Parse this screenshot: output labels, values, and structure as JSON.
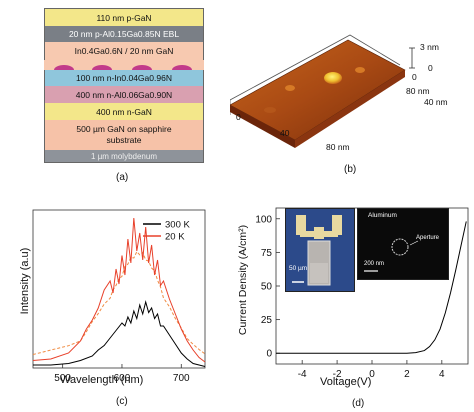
{
  "panel_a": {
    "label": "(a)",
    "layers": [
      {
        "text": "110 nm p-GaN",
        "color": "#f3e78a"
      },
      {
        "text": "20 nm p-Al0.15Ga0.85N EBL",
        "color": "#7a7f86"
      },
      {
        "text": "In0.4Ga0.6N / 20 nm GaN",
        "color": "#f7c9b0"
      },
      {
        "text": "100 nm n-In0.04Ga0.96N",
        "color": "#8fc6dc"
      },
      {
        "text": "400 nm n-Al0.06Ga0.90N",
        "color": "#d9a0b0"
      },
      {
        "text": "400 nm n-GaN",
        "color": "#f3e78a"
      },
      {
        "text": "500 µm GaN on sapphire substrate",
        "color": "#f6c2a8"
      },
      {
        "text": "1 µm molybdenum",
        "color": "#8e939a"
      }
    ]
  },
  "panel_b": {
    "label": "(b)",
    "z_top": "3 nm",
    "z_zero": "0",
    "y_ticks": [
      "0",
      "40 nm",
      "80 nm"
    ],
    "x_ticks": [
      "0",
      "40",
      "80 nm"
    ]
  },
  "panel_c": {
    "label": "(c)",
    "chart_data": {
      "type": "line",
      "xlabel": "Wavelength (nm)",
      "ylabel": "Intensity (a.u)",
      "xlim": [
        450,
        740
      ],
      "x_ticks": [
        "500",
        "600",
        "700"
      ],
      "legend_position": "top-right",
      "series": [
        {
          "name": "300 K",
          "color": "#000000",
          "x": [
            450,
            480,
            510,
            530,
            550,
            560,
            570,
            580,
            590,
            600,
            605,
            610,
            615,
            620,
            625,
            630,
            635,
            640,
            645,
            650,
            655,
            660,
            665,
            670,
            680,
            690,
            700,
            710,
            720,
            730,
            740
          ],
          "y": [
            0.02,
            0.02,
            0.03,
            0.05,
            0.08,
            0.12,
            0.15,
            0.2,
            0.25,
            0.3,
            0.28,
            0.34,
            0.3,
            0.38,
            0.33,
            0.42,
            0.36,
            0.44,
            0.37,
            0.4,
            0.33,
            0.36,
            0.28,
            0.28,
            0.22,
            0.16,
            0.1,
            0.06,
            0.03,
            0.02,
            0.01
          ]
        },
        {
          "name": "20 K",
          "color": "#e8402a",
          "x": [
            450,
            480,
            510,
            530,
            540,
            550,
            560,
            570,
            580,
            585,
            590,
            595,
            600,
            605,
            610,
            615,
            620,
            625,
            630,
            635,
            640,
            645,
            650,
            655,
            660,
            665,
            670,
            680,
            690,
            700,
            710,
            720,
            730,
            740
          ],
          "y": [
            0.05,
            0.06,
            0.1,
            0.18,
            0.26,
            0.32,
            0.4,
            0.52,
            0.58,
            0.5,
            0.66,
            0.56,
            0.75,
            0.62,
            0.86,
            0.7,
            1.0,
            0.78,
            0.9,
            0.72,
            0.94,
            0.7,
            0.82,
            0.62,
            0.72,
            0.55,
            0.58,
            0.46,
            0.36,
            0.26,
            0.18,
            0.12,
            0.07,
            0.04
          ]
        }
      ]
    }
  },
  "panel_d": {
    "label": "(d)",
    "chart_data": {
      "type": "line",
      "xlabel": "Voltage(V)",
      "ylabel": "Current Density (A/cm²)",
      "xlim": [
        -5.5,
        5.5
      ],
      "ylim": [
        -8,
        108
      ],
      "x_ticks": [
        -4,
        -2,
        0,
        2,
        4
      ],
      "y_ticks": [
        0,
        25,
        50,
        75,
        100
      ],
      "x": [
        -5.5,
        -4,
        -2,
        0,
        1,
        2,
        2.5,
        3,
        3.3,
        3.6,
        3.9,
        4.2,
        4.5,
        4.8,
        5.1,
        5.4
      ],
      "y": [
        0,
        0,
        0,
        0,
        0,
        0,
        0.5,
        2,
        5,
        10,
        18,
        30,
        45,
        62,
        80,
        98
      ]
    },
    "inset_left_scale": "50 µm",
    "inset_right_title": "Aluminum",
    "inset_right_label": "Aperture",
    "inset_right_scale": "200 nm"
  }
}
